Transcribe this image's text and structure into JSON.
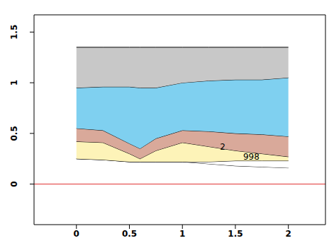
{
  "chart_data": {
    "type": "area",
    "stacked": true,
    "x": [
      0,
      0.25,
      0.5,
      0.6,
      0.75,
      1,
      1.25,
      1.5,
      1.75,
      2
    ],
    "base": [
      0.25,
      0.24,
      0.22,
      0.22,
      0.22,
      0.22,
      0.2,
      0.18,
      0.17,
      0.16
    ],
    "series": [
      {
        "color": "#ffffff",
        "values": [
          0,
          0,
          0,
          0,
          0,
          0,
          0.02,
          0.05,
          0.06,
          0.07
        ]
      },
      {
        "color": "#fdf3b8",
        "values": [
          0.17,
          0.17,
          0.08,
          0.03,
          0.11,
          0.19,
          0.15,
          0.1,
          0.07,
          0.04
        ]
      },
      {
        "color": "#d9a99a",
        "values": [
          0.13,
          0.12,
          0.1,
          0.1,
          0.12,
          0.12,
          0.15,
          0.17,
          0.19,
          0.2
        ]
      },
      {
        "color": "#7fd0f0",
        "values": [
          0.4,
          0.43,
          0.56,
          0.6,
          0.5,
          0.47,
          0.5,
          0.53,
          0.54,
          0.58
        ]
      },
      {
        "color": "#c8c8c8",
        "values": [
          0.4,
          0.39,
          0.39,
          0.4,
          0.4,
          0.35,
          0.33,
          0.32,
          0.32,
          0.3
        ]
      }
    ],
    "xlim": [
      -0.4,
      2.35
    ],
    "xticks": [
      0,
      0.5,
      1,
      1.5,
      2
    ],
    "ylim": [
      -0.4,
      1.67
    ],
    "yticks": [
      0,
      0.5,
      1,
      1.5
    ],
    "hline": {
      "y": 0,
      "color": "#e03030"
    },
    "annotations": [
      {
        "text": "2",
        "x": 1.38,
        "y": 0.37
      },
      {
        "text": "998",
        "x": 1.65,
        "y": 0.27
      }
    ]
  }
}
